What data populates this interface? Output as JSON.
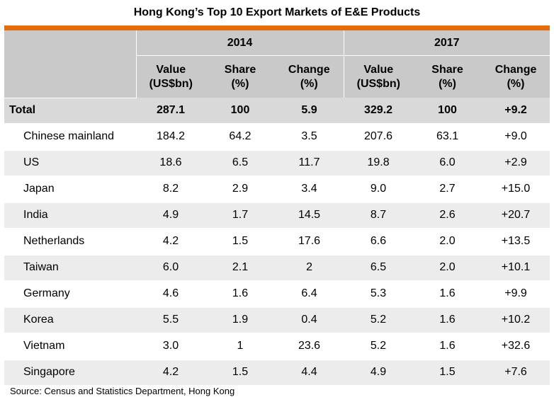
{
  "title": "Hong Kong’s Top 10 Export Markets of E&E Products",
  "colors": {
    "accent_bar": "#e46c0a",
    "header_bg": "#c9c9c9",
    "total_bg": "#d9d9d9",
    "row_shade": "#ececec"
  },
  "header": {
    "year_2014": "2014",
    "year_2017": "2017",
    "col_value_line1": "Value",
    "col_value_line2": "(US$bn)",
    "col_share_line1": "Share",
    "col_share_line2": "(%)",
    "col_change_line1": "Change",
    "col_change_line2": "(%)"
  },
  "total": {
    "name": "Total",
    "v2014": "287.1",
    "s2014": "100",
    "c2014": "5.9",
    "v2017": "329.2",
    "s2017": "100",
    "c2017": "+9.2"
  },
  "rows": [
    {
      "name": "Chinese mainland",
      "v2014": "184.2",
      "s2014": "64.2",
      "c2014": "3.5",
      "v2017": "207.6",
      "s2017": "63.1",
      "c2017": "+9.0"
    },
    {
      "name": "US",
      "v2014": "18.6",
      "s2014": "6.5",
      "c2014": "11.7",
      "v2017": "19.8",
      "s2017": "6.0",
      "c2017": "+2.9"
    },
    {
      "name": "Japan",
      "v2014": "8.2",
      "s2014": "2.9",
      "c2014": "3.4",
      "v2017": "9.0",
      "s2017": "2.7",
      "c2017": "+15.0"
    },
    {
      "name": "India",
      "v2014": "4.9",
      "s2014": "1.7",
      "c2014": "14.5",
      "v2017": "8.7",
      "s2017": "2.6",
      "c2017": "+20.7"
    },
    {
      "name": "Netherlands",
      "v2014": "4.2",
      "s2014": "1.5",
      "c2014": "17.6",
      "v2017": "6.6",
      "s2017": "2.0",
      "c2017": "+13.5"
    },
    {
      "name": "Taiwan",
      "v2014": "6.0",
      "s2014": "2.1",
      "c2014": "2",
      "v2017": "6.5",
      "s2017": "2.0",
      "c2017": "+10.1"
    },
    {
      "name": "Germany",
      "v2014": "4.6",
      "s2014": "1.6",
      "c2014": "6.4",
      "v2017": "5.3",
      "s2017": "1.6",
      "c2017": "+9.9"
    },
    {
      "name": "Korea",
      "v2014": "5.5",
      "s2014": "1.9",
      "c2014": "0.4",
      "v2017": "5.2",
      "s2017": "1.6",
      "c2017": "+10.2"
    },
    {
      "name": "Vietnam",
      "v2014": "3.0",
      "s2014": "1",
      "c2014": "23.6",
      "v2017": "5.2",
      "s2017": "1.6",
      "c2017": "+32.6"
    },
    {
      "name": "Singapore",
      "v2014": "4.2",
      "s2014": "1.5",
      "c2014": "4.4",
      "v2017": "4.9",
      "s2017": "1.5",
      "c2017": "+7.6"
    }
  ],
  "source": "Source: Census and Statistics Department, Hong Kong"
}
